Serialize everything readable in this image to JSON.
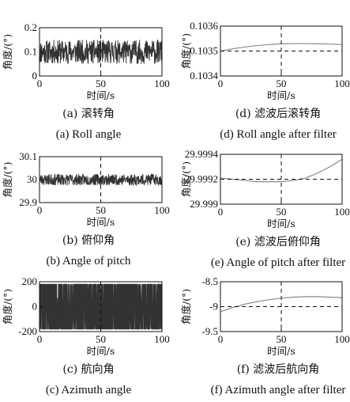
{
  "chart_data": [
    {
      "type": "line",
      "xlabel": "时间/s",
      "ylabel": "角度/(°)",
      "caption_cn": "(a) 滚转角",
      "caption_en": "(a) Roll angle",
      "xlim": [
        0,
        100
      ],
      "ylim": [
        0,
        0.2
      ],
      "xticks": [
        "0",
        "50",
        "100"
      ],
      "yticks": [
        "0",
        "0.1",
        "0.2"
      ],
      "signal": {
        "kind": "noise",
        "mean": 0.1,
        "amplitude": 0.05,
        "seed": 11
      },
      "reference_lines": {
        "vertical_x": 50,
        "horizontal_y": null
      }
    },
    {
      "type": "line",
      "xlabel": "时间/s",
      "ylabel": "角度/(°)",
      "caption_cn": "(d) 滤波后滚转角",
      "caption_en": "(d) Roll angle after filter",
      "xlim": [
        0,
        100
      ],
      "ylim": [
        0.1034,
        0.1036
      ],
      "xticks": [
        "0",
        "50",
        "100"
      ],
      "yticks": [
        "0.1034",
        "0.1035",
        "0.1036"
      ],
      "x": [
        0,
        10,
        20,
        30,
        40,
        50,
        60,
        70,
        80,
        90,
        100
      ],
      "y": [
        0.1035,
        0.103509,
        0.103516,
        0.103522,
        0.103526,
        0.103529,
        0.10353,
        0.10353,
        0.103529,
        0.103528,
        0.103526
      ],
      "reference_lines": {
        "vertical_x": 50,
        "horizontal_y": 0.1035
      }
    },
    {
      "type": "line",
      "xlabel": "时间/s",
      "ylabel": "角度/(°)",
      "caption_cn": "(b) 俯仰角",
      "caption_en": "(b) Angle of pitch",
      "xlim": [
        0,
        100
      ],
      "ylim": [
        29.9,
        30.1
      ],
      "xticks": [
        "0",
        "50",
        "100"
      ],
      "yticks": [
        "29.9",
        "30",
        "30.1"
      ],
      "signal": {
        "kind": "noise",
        "mean": 30.0,
        "amplitude": 0.025,
        "seed": 23
      },
      "reference_lines": {
        "vertical_x": 50,
        "horizontal_y": null
      }
    },
    {
      "type": "line",
      "xlabel": "时间/s",
      "ylabel": "角度/(°)",
      "caption_cn": "(e) 滤波后俯仰角",
      "caption_en": "(e) Angle of pitch after filter",
      "xlim": [
        0,
        100
      ],
      "ylim": [
        29.999,
        29.9994
      ],
      "xticks": [
        "0",
        "50",
        "100"
      ],
      "yticks": [
        "29.999",
        "29.9992",
        "29.9994"
      ],
      "x": [
        0,
        10,
        20,
        30,
        40,
        50,
        60,
        70,
        80,
        90,
        100
      ],
      "y": [
        29.99921,
        29.9992,
        29.99919,
        29.99918,
        29.99918,
        29.99918,
        29.99919,
        29.99921,
        29.99925,
        29.9993,
        29.99936
      ],
      "reference_lines": {
        "vertical_x": 50,
        "horizontal_y": 29.9992
      }
    },
    {
      "type": "line",
      "xlabel": "时间/s",
      "ylabel": "角度/(°)",
      "caption_cn": "(c) 航向角",
      "caption_en": "(c) Azimuth angle",
      "xlim": [
        0,
        100
      ],
      "ylim": [
        -200,
        200
      ],
      "xticks": [
        "0",
        "50",
        "100"
      ],
      "yticks": [
        "-200",
        "0",
        "200"
      ],
      "signal": {
        "kind": "wrap",
        "low": -180,
        "high": 180,
        "seed": 37
      },
      "reference_lines": {
        "vertical_x": 50,
        "horizontal_y": null
      }
    },
    {
      "type": "line",
      "xlabel": "时间/s",
      "ylabel": "角度/(°)",
      "caption_cn": "(f) 滤波后航向角",
      "caption_en": "(f) Azimuth angle after filter",
      "xlim": [
        0,
        100
      ],
      "ylim": [
        -9.5,
        -8.5
      ],
      "xticks": [
        "0",
        "50",
        "100"
      ],
      "yticks": [
        "-9.5",
        "-9",
        "-8.5"
      ],
      "x": [
        0,
        10,
        20,
        30,
        40,
        50,
        60,
        70,
        80,
        90,
        100
      ],
      "y": [
        -9.1,
        -9.02,
        -8.95,
        -8.9,
        -8.86,
        -8.83,
        -8.81,
        -8.8,
        -8.8,
        -8.81,
        -8.82
      ],
      "reference_lines": {
        "vertical_x": 50,
        "horizontal_y": -9
      }
    }
  ]
}
